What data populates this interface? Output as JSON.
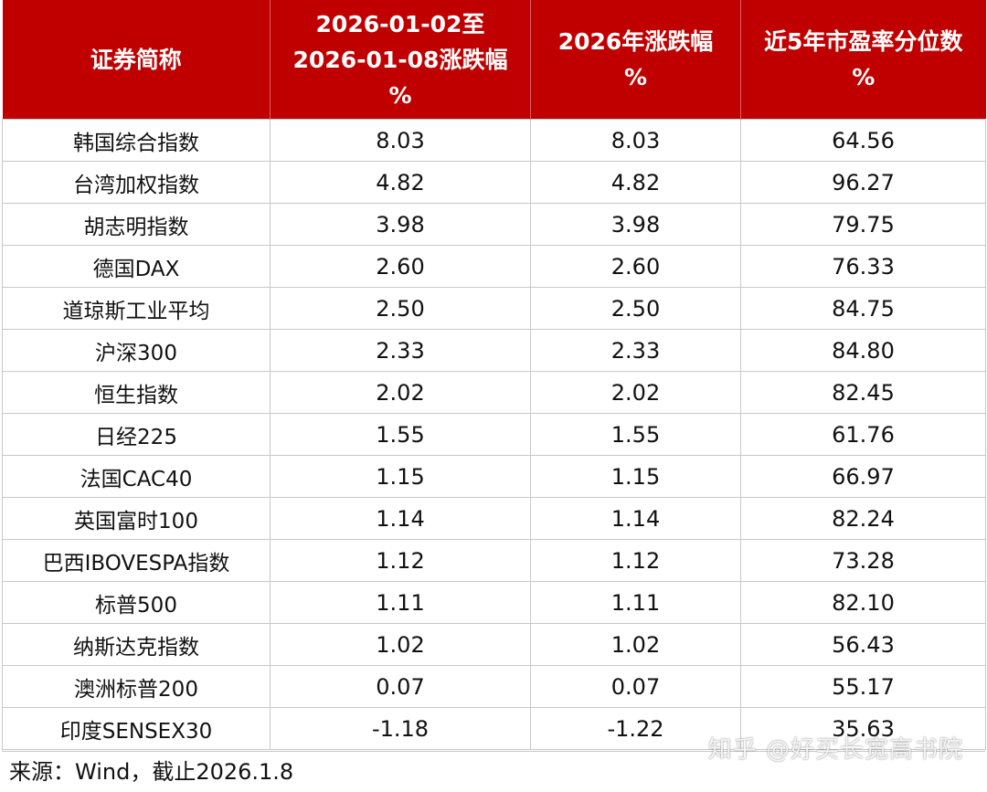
{
  "table": {
    "headers": [
      {
        "lines": [
          "证券简称"
        ]
      },
      {
        "lines": [
          "2026-01-02至",
          "2026-01-08涨跌幅",
          "%"
        ]
      },
      {
        "lines": [
          "2026年涨跌幅",
          "%"
        ]
      },
      {
        "lines": [
          "近5年市盈率分位数",
          "%"
        ]
      }
    ],
    "rows": [
      {
        "name": "韩国综合指数",
        "week": "8.03",
        "ytd": "8.03",
        "pe": "64.56"
      },
      {
        "name": "台湾加权指数",
        "week": "4.82",
        "ytd": "4.82",
        "pe": "96.27"
      },
      {
        "name": "胡志明指数",
        "week": "3.98",
        "ytd": "3.98",
        "pe": "79.75"
      },
      {
        "name": "德国DAX",
        "week": "2.60",
        "ytd": "2.60",
        "pe": "76.33"
      },
      {
        "name": "道琼斯工业平均",
        "week": "2.50",
        "ytd": "2.50",
        "pe": "84.75"
      },
      {
        "name": "沪深300",
        "week": "2.33",
        "ytd": "2.33",
        "pe": "84.80"
      },
      {
        "name": "恒生指数",
        "week": "2.02",
        "ytd": "2.02",
        "pe": "82.45"
      },
      {
        "name": "日经225",
        "week": "1.55",
        "ytd": "1.55",
        "pe": "61.76"
      },
      {
        "name": "法国CAC40",
        "week": "1.15",
        "ytd": "1.15",
        "pe": "66.97"
      },
      {
        "name": "英国富时100",
        "week": "1.14",
        "ytd": "1.14",
        "pe": "82.24"
      },
      {
        "name": "巴西IBOVESPA指数",
        "week": "1.12",
        "ytd": "1.12",
        "pe": "73.28"
      },
      {
        "name": "标普500",
        "week": "1.11",
        "ytd": "1.11",
        "pe": "82.10"
      },
      {
        "name": "纳斯达克指数",
        "week": "1.02",
        "ytd": "1.02",
        "pe": "56.43"
      },
      {
        "name": "澳洲标普200",
        "week": "0.07",
        "ytd": "0.07",
        "pe": "55.17"
      },
      {
        "name": "印度SENSEX30",
        "week": "-1.18",
        "ytd": "-1.22",
        "pe": "35.63"
      }
    ]
  },
  "source_note": "来源：Wind，截止2026.1.8",
  "watermark": "知乎 @好买长宽高书院",
  "colors": {
    "header_bg": "#c00000",
    "header_text": "#ffffff",
    "grid": "#c8c8c8"
  }
}
